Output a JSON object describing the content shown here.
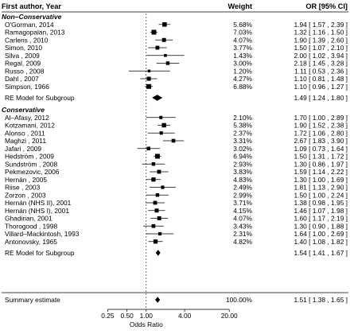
{
  "chart_data": {
    "type": "forest",
    "headers": {
      "study": "First author, Year",
      "weight": "Weight",
      "or": "OR [95% CI]"
    },
    "x_axis": {
      "label": "Odds Ratio",
      "scale": "log",
      "ticks": [
        {
          "value": 0.25,
          "label": "0.25"
        },
        {
          "value": 0.5,
          "label": "0.50"
        },
        {
          "value": 1,
          "label": "1.00"
        },
        {
          "value": 4,
          "label": "4.00"
        },
        {
          "value": 20,
          "label": "20.00"
        }
      ],
      "reference_line": 1
    },
    "groups": [
      {
        "title": "Non–Conservative",
        "studies": [
          {
            "name": "O'Gorman, 2014",
            "weight": "5.68%",
            "or": 1.94,
            "lo": 1.57,
            "hi": 2.39,
            "ci_text": "1.94 [ 1.57 , 2.39 ]"
          },
          {
            "name": "Ramagopalan, 2013",
            "weight": "7.03%",
            "or": 1.32,
            "lo": 1.16,
            "hi": 1.5,
            "ci_text": "1.32 [ 1.16 , 1.50 ]"
          },
          {
            "name": "Carlens , 2010",
            "weight": "4.07%",
            "or": 1.9,
            "lo": 1.39,
            "hi": 2.6,
            "ci_text": "1.90 [ 1.39 , 2.60 ]"
          },
          {
            "name": "Simon, 2010",
            "weight": "3.77%",
            "or": 1.5,
            "lo": 1.07,
            "hi": 2.1,
            "ci_text": "1.50 [ 1.07 , 2.10 ]"
          },
          {
            "name": "Silva , 2009",
            "weight": "1.43%",
            "or": 2.0,
            "lo": 1.02,
            "hi": 3.94,
            "ci_text": "2.00 [ 1.02 , 3.94 ]"
          },
          {
            "name": "Regal, 2009",
            "weight": "3.00%",
            "or": 2.18,
            "lo": 1.45,
            "hi": 3.28,
            "ci_text": "2.18 [ 1.45 , 3.28 ]"
          },
          {
            "name": "Russo , 2008",
            "weight": "1.20%",
            "or": 1.11,
            "lo": 0.53,
            "hi": 2.36,
            "ci_text": "1.11 [ 0.53 , 2.36 ]"
          },
          {
            "name": "Dahl , 2007",
            "weight": "4.27%",
            "or": 1.1,
            "lo": 0.81,
            "hi": 1.48,
            "ci_text": "1.10 [ 0.81 , 1.48 ]"
          },
          {
            "name": "Simpson, 1966",
            "weight": "6.88%",
            "or": 1.1,
            "lo": 0.96,
            "hi": 1.27,
            "ci_text": "1.10 [ 0.96 , 1.27 ]"
          }
        ],
        "summary": {
          "name": "RE Model for Subgroup",
          "or": 1.49,
          "lo": 1.24,
          "hi": 1.8,
          "ci_text": "1.49 [ 1.24 , 1.80 ]"
        }
      },
      {
        "title": "Conservative",
        "studies": [
          {
            "name": "Al–Afasy, 2012",
            "weight": "2.10%",
            "or": 1.7,
            "lo": 1.0,
            "hi": 2.89,
            "ci_text": "1.70 [ 1.00 , 2.89 ]"
          },
          {
            "name": "Kotzamani, 2012",
            "weight": "5.38%",
            "or": 1.9,
            "lo": 1.52,
            "hi": 2.38,
            "ci_text": "1.90 [ 1.52 , 2.38 ]"
          },
          {
            "name": "Alonso , 2011",
            "weight": "2.37%",
            "or": 1.72,
            "lo": 1.06,
            "hi": 2.8,
            "ci_text": "1.72 [ 1.06 , 2.80 ]"
          },
          {
            "name": "Maghzi , 2011",
            "weight": "3.31%",
            "or": 2.67,
            "lo": 1.83,
            "hi": 3.9,
            "ci_text": "2.67 [ 1.83 , 3.90 ]"
          },
          {
            "name": "Jafari , 2009",
            "weight": "3.02%",
            "or": 1.09,
            "lo": 0.73,
            "hi": 1.64,
            "ci_text": "1.09 [ 0.73 , 1.64 ]"
          },
          {
            "name": "Hedström , 2009",
            "weight": "6.94%",
            "or": 1.5,
            "lo": 1.31,
            "hi": 1.72,
            "ci_text": "1.50 [ 1.31 , 1.72 ]"
          },
          {
            "name": "Sundström , 2008",
            "weight": "2.93%",
            "or": 1.3,
            "lo": 0.86,
            "hi": 1.97,
            "ci_text": "1.30 [ 0.86 , 1.97 ]"
          },
          {
            "name": "Pekmezovic, 2006",
            "weight": "3.83%",
            "or": 1.59,
            "lo": 1.14,
            "hi": 2.22,
            "ci_text": "1.59 [ 1.14 , 2.22 ]"
          },
          {
            "name": "Hernán , 2005",
            "weight": "4.83%",
            "or": 1.3,
            "lo": 1.0,
            "hi": 1.69,
            "ci_text": "1.30 [ 1.00 , 1.69 ]"
          },
          {
            "name": "Riise , 2003",
            "weight": "2.49%",
            "or": 1.81,
            "lo": 1.13,
            "hi": 2.9,
            "ci_text": "1.81 [ 1.13 , 2.90 ]"
          },
          {
            "name": "Zorzon , 2003",
            "weight": "2.99%",
            "or": 1.5,
            "lo": 1.0,
            "hi": 2.24,
            "ci_text": "1.50 [ 1.00 , 2.24 ]"
          },
          {
            "name": "Hernán (NHS II), 2001",
            "weight": "3.71%",
            "or": 1.38,
            "lo": 0.98,
            "hi": 1.95,
            "ci_text": "1.38 [ 0.98 , 1.95 ]"
          },
          {
            "name": "Hernán (NHS I), 2001",
            "weight": "4.15%",
            "or": 1.46,
            "lo": 1.07,
            "hi": 1.98,
            "ci_text": "1.46 [ 1.07 , 1.98 ]"
          },
          {
            "name": "Ghadirian, 2001",
            "weight": "4.07%",
            "or": 1.6,
            "lo": 1.17,
            "hi": 2.19,
            "ci_text": "1.60 [ 1.17 , 2.19 ]"
          },
          {
            "name": "Thorogood , 1998",
            "weight": "3.43%",
            "or": 1.3,
            "lo": 0.9,
            "hi": 1.88,
            "ci_text": "1.30 [ 0.90 , 1.88 ]"
          },
          {
            "name": "Villard–Mackintosh, 1993",
            "weight": "2.31%",
            "or": 1.64,
            "lo": 1.0,
            "hi": 2.69,
            "ci_text": "1.64 [ 1.00 , 2.69 ]"
          },
          {
            "name": "Antonovsky, 1965",
            "weight": "4.82%",
            "or": 1.4,
            "lo": 1.08,
            "hi": 1.82,
            "ci_text": "1.40 [ 1.08 , 1.82 ]"
          }
        ],
        "summary": {
          "name": "RE Model for Subgroup",
          "or": 1.54,
          "lo": 1.41,
          "hi": 1.67,
          "ci_text": "1.54 [ 1.41 , 1.67 ]"
        }
      }
    ],
    "overall": {
      "name": "Summary estimate",
      "weight": "100.00%",
      "or": 1.51,
      "lo": 1.38,
      "hi": 1.65,
      "ci_text": "1.51 [ 1.38 , 1.65 ]"
    }
  }
}
